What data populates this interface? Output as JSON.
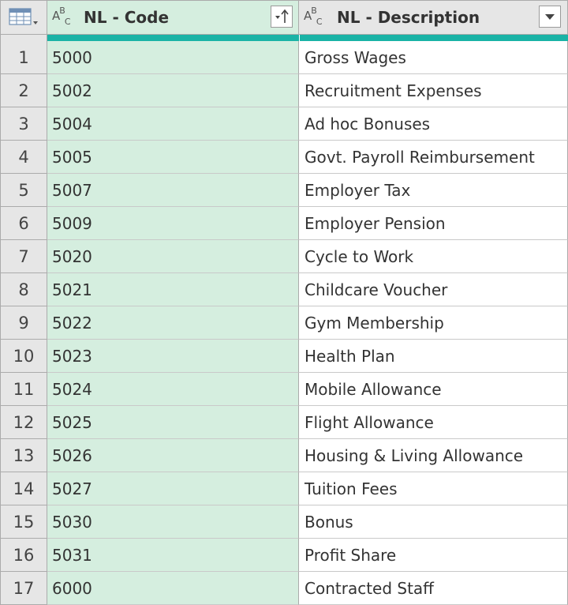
{
  "header": {
    "columns": [
      {
        "type_icon": "text-type-icon",
        "title": "NL - Code",
        "filter_icon": "sort-ascending-filter-icon"
      },
      {
        "type_icon": "text-type-icon",
        "title": "NL - Description",
        "filter_icon": "dropdown-filter-icon"
      }
    ],
    "corner_icon": "table-menu-icon"
  },
  "colors": {
    "accent": "#1ab3a6",
    "selected_column": "#d5eedf",
    "header_bg": "#e6e6e6"
  },
  "rows": [
    {
      "num": "1",
      "code": "5000",
      "description": "Gross Wages"
    },
    {
      "num": "2",
      "code": "5002",
      "description": "Recruitment Expenses"
    },
    {
      "num": "3",
      "code": "5004",
      "description": "Ad hoc Bonuses"
    },
    {
      "num": "4",
      "code": "5005",
      "description": "Govt. Payroll Reimbursement"
    },
    {
      "num": "5",
      "code": "5007",
      "description": "Employer Tax"
    },
    {
      "num": "6",
      "code": "5009",
      "description": "Employer Pension"
    },
    {
      "num": "7",
      "code": "5020",
      "description": "Cycle to Work"
    },
    {
      "num": "8",
      "code": "5021",
      "description": "Childcare Voucher"
    },
    {
      "num": "9",
      "code": "5022",
      "description": "Gym Membership"
    },
    {
      "num": "10",
      "code": "5023",
      "description": "Health Plan"
    },
    {
      "num": "11",
      "code": "5024",
      "description": "Mobile Allowance"
    },
    {
      "num": "12",
      "code": "5025",
      "description": "Flight Allowance"
    },
    {
      "num": "13",
      "code": "5026",
      "description": "Housing & Living Allowance"
    },
    {
      "num": "14",
      "code": "5027",
      "description": "Tuition Fees"
    },
    {
      "num": "15",
      "code": "5030",
      "description": "Bonus"
    },
    {
      "num": "16",
      "code": "5031",
      "description": "Profit Share"
    },
    {
      "num": "17",
      "code": "6000",
      "description": "Contracted Staff"
    }
  ]
}
